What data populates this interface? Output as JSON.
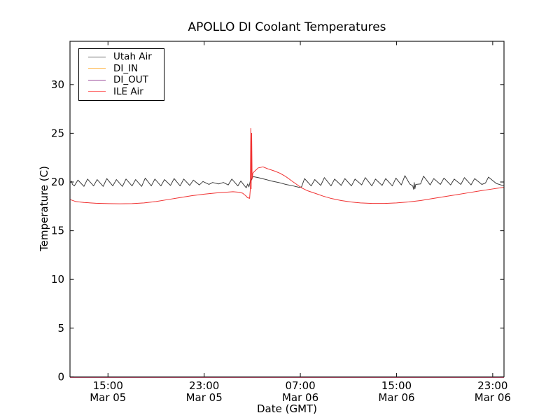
{
  "chart_data": {
    "type": "line",
    "title": "APOLLO DI Coolant Temperatures",
    "xlabel": "Date (GMT)",
    "ylabel": "Temperature (C)",
    "x_units": "hours since Mar 05 00:00 GMT",
    "xlim": [
      11.84,
      47.94
    ],
    "ylim": [
      0,
      34.44
    ],
    "yticks": [
      0,
      5,
      10,
      15,
      20,
      25,
      30
    ],
    "xticks": [
      {
        "t": 15,
        "time": "15:00",
        "date": "Mar 05"
      },
      {
        "t": 23,
        "time": "23:00",
        "date": "Mar 05"
      },
      {
        "t": 31,
        "time": "07:00",
        "date": "Mar 06"
      },
      {
        "t": 39,
        "time": "15:00",
        "date": "Mar 06"
      },
      {
        "t": 47,
        "time": "23:00",
        "date": "Mar 06"
      }
    ],
    "grid": false,
    "legend_position": "upper-left",
    "axis_color": "#1c1c1c",
    "series": [
      {
        "name": "Utah Air",
        "color": "#3c3c3c",
        "legend_color": "#6e6e6e",
        "points": [
          [
            11.84,
            19.9
          ],
          [
            11.95,
            20.1
          ],
          [
            12.05,
            19.75
          ],
          [
            12.2,
            19.6
          ],
          [
            12.5,
            20.2
          ],
          [
            13.0,
            19.55
          ],
          [
            13.3,
            20.3
          ],
          [
            13.8,
            19.6
          ],
          [
            14.1,
            20.25
          ],
          [
            14.6,
            19.55
          ],
          [
            14.9,
            20.35
          ],
          [
            15.4,
            19.6
          ],
          [
            15.7,
            20.25
          ],
          [
            16.2,
            19.55
          ],
          [
            16.5,
            20.3
          ],
          [
            17.0,
            19.6
          ],
          [
            17.3,
            20.25
          ],
          [
            17.8,
            19.55
          ],
          [
            18.1,
            20.4
          ],
          [
            18.6,
            19.6
          ],
          [
            18.9,
            20.3
          ],
          [
            19.4,
            19.6
          ],
          [
            19.7,
            20.25
          ],
          [
            20.2,
            19.65
          ],
          [
            20.5,
            20.35
          ],
          [
            21.0,
            19.6
          ],
          [
            21.3,
            20.3
          ],
          [
            21.8,
            19.65
          ],
          [
            22.1,
            20.2
          ],
          [
            22.6,
            19.7
          ],
          [
            22.9,
            20.05
          ],
          [
            23.4,
            19.75
          ],
          [
            23.7,
            19.95
          ],
          [
            24.2,
            19.8
          ],
          [
            24.6,
            19.95
          ],
          [
            25.0,
            19.7
          ],
          [
            25.3,
            20.3
          ],
          [
            25.8,
            19.6
          ],
          [
            26.05,
            20.1
          ],
          [
            26.3,
            19.7
          ],
          [
            26.5,
            19.4
          ],
          [
            26.62,
            19.8
          ],
          [
            26.72,
            19.5
          ],
          [
            26.8,
            19.9
          ],
          [
            26.86,
            20.25
          ],
          [
            26.9,
            20.55
          ],
          [
            26.94,
            20.2
          ],
          [
            27.0,
            20.45
          ],
          [
            27.1,
            20.55
          ],
          [
            27.5,
            20.45
          ],
          [
            28.0,
            20.3
          ],
          [
            28.6,
            20.1
          ],
          [
            29.2,
            19.95
          ],
          [
            29.8,
            19.75
          ],
          [
            30.4,
            19.6
          ],
          [
            30.9,
            19.45
          ],
          [
            31.1,
            19.5
          ],
          [
            31.35,
            20.35
          ],
          [
            31.9,
            19.6
          ],
          [
            32.2,
            20.25
          ],
          [
            32.7,
            19.65
          ],
          [
            33.0,
            20.45
          ],
          [
            33.55,
            19.6
          ],
          [
            33.85,
            20.3
          ],
          [
            34.4,
            19.65
          ],
          [
            34.7,
            20.35
          ],
          [
            35.25,
            19.6
          ],
          [
            35.55,
            20.3
          ],
          [
            36.1,
            19.7
          ],
          [
            36.4,
            20.45
          ],
          [
            36.95,
            19.6
          ],
          [
            37.25,
            20.3
          ],
          [
            37.8,
            19.65
          ],
          [
            38.1,
            20.35
          ],
          [
            38.65,
            19.6
          ],
          [
            38.95,
            20.4
          ],
          [
            39.4,
            19.7
          ],
          [
            39.7,
            20.65
          ],
          [
            40.1,
            19.8
          ],
          [
            40.35,
            19.6
          ],
          [
            40.42,
            19.25
          ],
          [
            40.47,
            19.95
          ],
          [
            40.53,
            19.3
          ],
          [
            40.6,
            19.75
          ],
          [
            41.0,
            19.8
          ],
          [
            41.25,
            20.6
          ],
          [
            41.8,
            19.7
          ],
          [
            42.1,
            20.35
          ],
          [
            42.65,
            19.75
          ],
          [
            42.95,
            20.4
          ],
          [
            43.5,
            19.7
          ],
          [
            43.8,
            20.3
          ],
          [
            44.35,
            19.75
          ],
          [
            44.65,
            20.45
          ],
          [
            45.2,
            19.7
          ],
          [
            45.5,
            20.35
          ],
          [
            46.1,
            19.75
          ],
          [
            46.4,
            19.9
          ],
          [
            46.65,
            20.5
          ],
          [
            47.3,
            19.85
          ],
          [
            47.94,
            19.6
          ]
        ]
      },
      {
        "name": "DI_IN",
        "color": "#ffa500",
        "legend_color": "#ffbb55",
        "points": [
          [
            11.84,
            0
          ],
          [
            47.94,
            0
          ]
        ]
      },
      {
        "name": "DI_OUT",
        "color": "#800080",
        "legend_color": "#9b4d9b",
        "points": [
          [
            11.84,
            0
          ],
          [
            47.94,
            0
          ]
        ]
      },
      {
        "name": "ILE Air",
        "color": "#f03030",
        "legend_color": "#ff6b6b",
        "points": [
          [
            11.84,
            18.2
          ],
          [
            12.3,
            18.0
          ],
          [
            13.0,
            17.9
          ],
          [
            14.0,
            17.82
          ],
          [
            15.0,
            17.78
          ],
          [
            16.0,
            17.76
          ],
          [
            17.0,
            17.78
          ],
          [
            18.0,
            17.85
          ],
          [
            19.0,
            18.0
          ],
          [
            20.0,
            18.2
          ],
          [
            21.0,
            18.4
          ],
          [
            22.0,
            18.6
          ],
          [
            23.0,
            18.75
          ],
          [
            24.0,
            18.88
          ],
          [
            24.8,
            18.95
          ],
          [
            25.4,
            19.0
          ],
          [
            25.9,
            18.95
          ],
          [
            26.2,
            18.85
          ],
          [
            26.45,
            18.6
          ],
          [
            26.6,
            18.4
          ],
          [
            26.78,
            18.32
          ],
          [
            26.84,
            19.3
          ],
          [
            26.88,
            25.5
          ],
          [
            26.91,
            19.3
          ],
          [
            26.95,
            25.0
          ],
          [
            26.99,
            20.3
          ],
          [
            27.05,
            20.9
          ],
          [
            27.15,
            21.05
          ],
          [
            27.5,
            21.45
          ],
          [
            27.9,
            21.55
          ],
          [
            28.3,
            21.35
          ],
          [
            28.8,
            21.15
          ],
          [
            29.3,
            20.9
          ],
          [
            29.8,
            20.55
          ],
          [
            30.3,
            20.1
          ],
          [
            30.7,
            19.75
          ],
          [
            31.1,
            19.4
          ],
          [
            31.6,
            19.1
          ],
          [
            32.2,
            18.85
          ],
          [
            32.9,
            18.55
          ],
          [
            33.6,
            18.3
          ],
          [
            34.4,
            18.1
          ],
          [
            35.2,
            17.95
          ],
          [
            36.0,
            17.85
          ],
          [
            37.0,
            17.8
          ],
          [
            38.0,
            17.8
          ],
          [
            39.0,
            17.85
          ],
          [
            40.0,
            17.95
          ],
          [
            41.0,
            18.1
          ],
          [
            42.0,
            18.3
          ],
          [
            43.0,
            18.5
          ],
          [
            44.0,
            18.7
          ],
          [
            45.0,
            18.9
          ],
          [
            46.0,
            19.1
          ],
          [
            46.8,
            19.25
          ],
          [
            47.5,
            19.38
          ],
          [
            47.94,
            19.45
          ]
        ]
      }
    ]
  }
}
